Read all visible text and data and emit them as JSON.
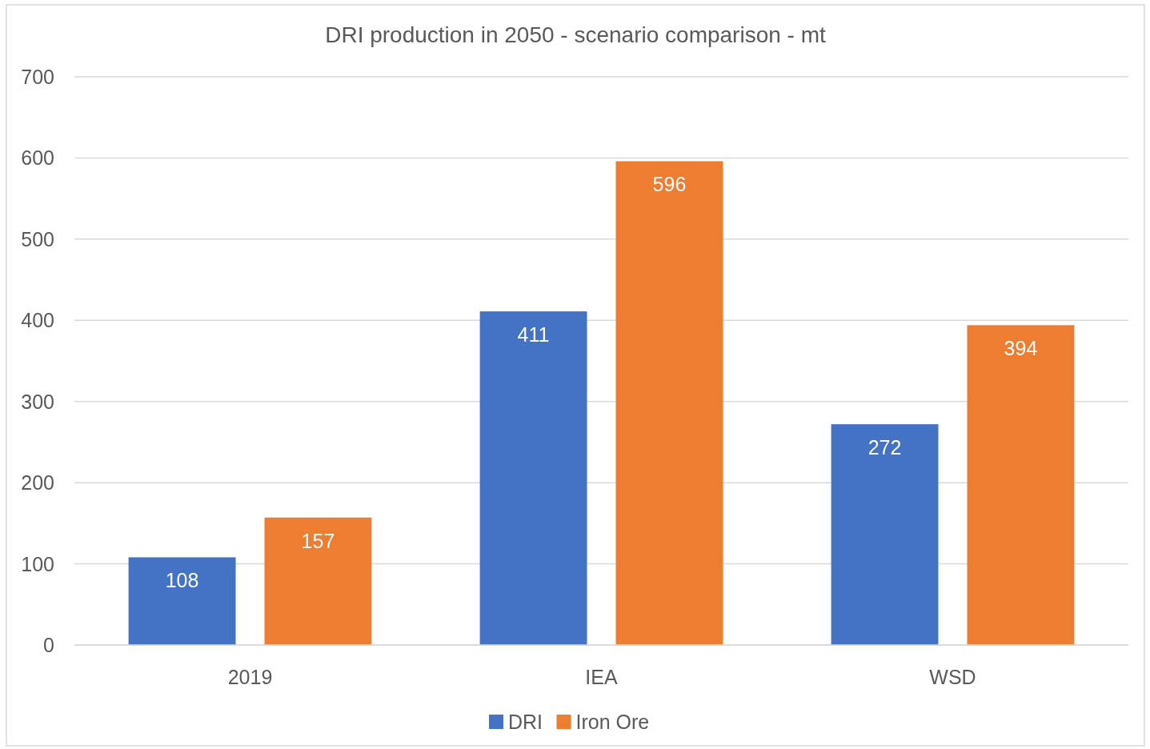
{
  "chart_data": {
    "type": "bar",
    "title": "DRI production in 2050 - scenario comparison - mt",
    "categories": [
      "2019",
      "IEA",
      "WSD"
    ],
    "series": [
      {
        "name": "DRI",
        "color": "#4472c4",
        "values": [
          108,
          411,
          272
        ]
      },
      {
        "name": "Iron Ore",
        "color": "#ed7d31",
        "values": [
          157,
          596,
          394
        ]
      }
    ],
    "ylim": [
      0,
      700
    ],
    "yticks": [
      0,
      100,
      200,
      300,
      400,
      500,
      600,
      700
    ],
    "grid": "y",
    "legend": "bottom",
    "data_labels": true
  }
}
